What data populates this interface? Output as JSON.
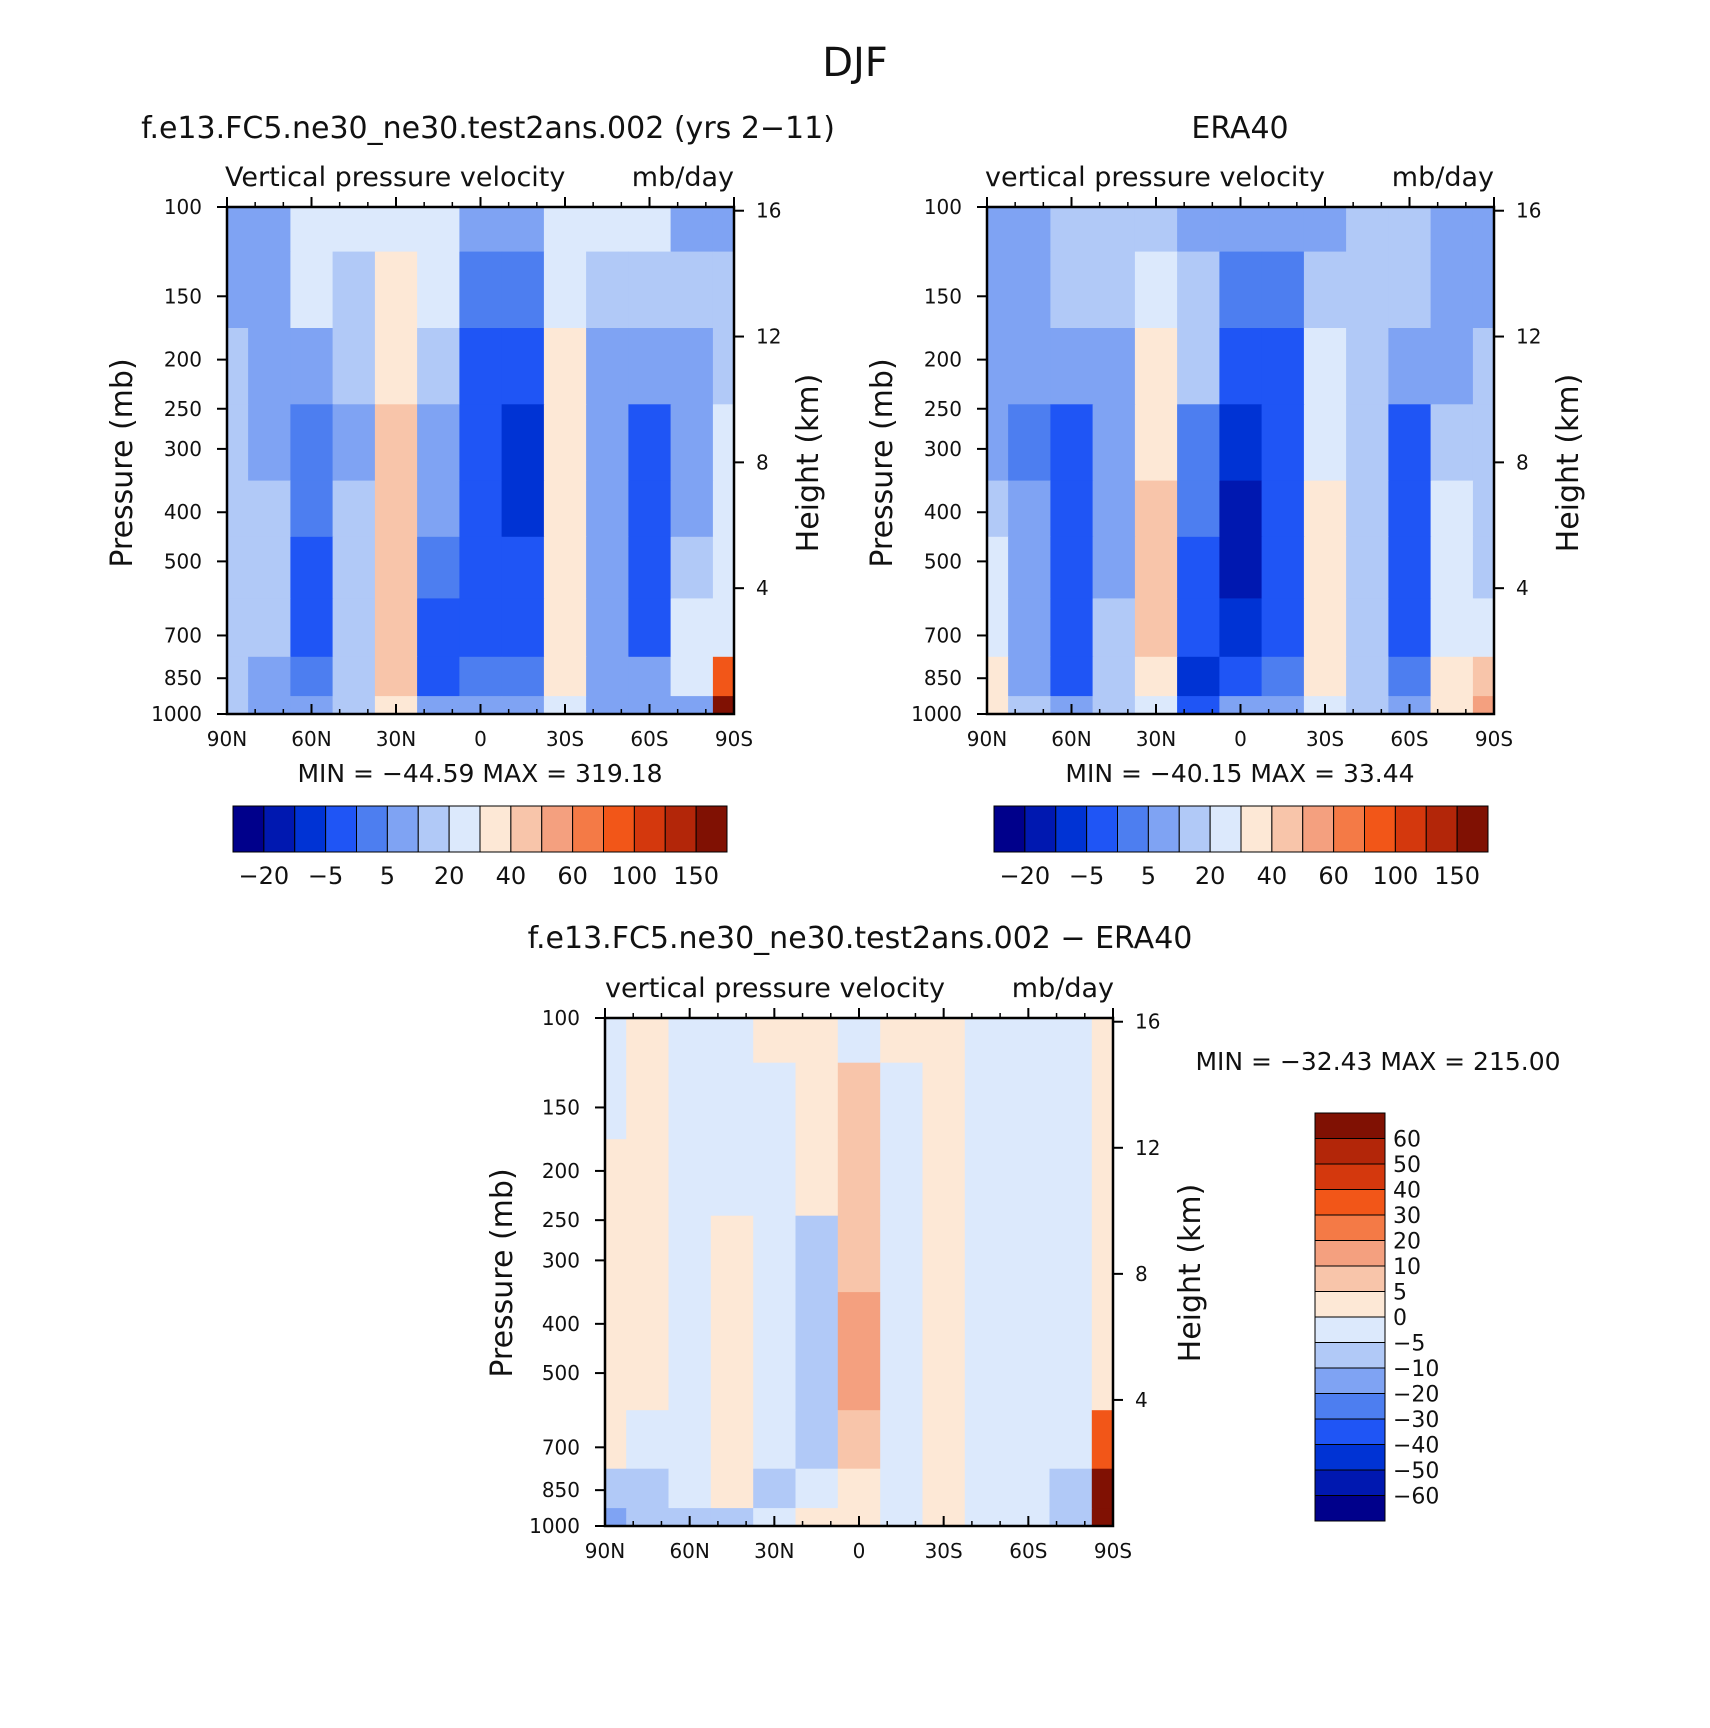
{
  "figure": {
    "title": "DJF"
  },
  "colors": {
    "main_scale": [
      "#00008b",
      "#0018b0",
      "#0033d4",
      "#1f55f5",
      "#4d7ef0",
      "#7fa3f3",
      "#b1c9f7",
      "#dce9fc",
      "#fde8d6",
      "#f8c5aa",
      "#f4a07f",
      "#f47a46",
      "#f25618",
      "#d4380d",
      "#b32609",
      "#801103"
    ],
    "diff_scale": [
      "#00008b",
      "#0018b0",
      "#0033d4",
      "#1f55f5",
      "#4d7ef0",
      "#7fa3f3",
      "#b1c9f7",
      "#dce9fc",
      "#fde8d6",
      "#f8c5aa",
      "#f4a07f",
      "#f47a46",
      "#f25618",
      "#d4380d",
      "#b32609",
      "#801103"
    ]
  },
  "panels": [
    {
      "id": "model",
      "title": "f.e13.FC5.ne30_ne30.test2ans.002 (yrs 2−11)",
      "subtitle_left": "Vertical pressure velocity",
      "subtitle_right": "mb/day",
      "y_label": "Pressure (mb)",
      "y2_label": "Height (km)",
      "min_max": "MIN = −44.59   MAX = 319.18",
      "colorbar_labels": [
        "−20",
        "−5",
        "5",
        "20",
        "40",
        "60",
        "100",
        "150"
      ]
    },
    {
      "id": "era40",
      "title": "ERA40",
      "subtitle_left": "vertical pressure velocity",
      "subtitle_right": "mb/day",
      "y_label": "Pressure (mb)",
      "y2_label": "Height (km)",
      "min_max": "MIN = −40.15   MAX =   33.44",
      "colorbar_labels": [
        "−20",
        "−5",
        "5",
        "20",
        "40",
        "60",
        "100",
        "150"
      ]
    },
    {
      "id": "diff",
      "title": "f.e13.FC5.ne30_ne30.test2ans.002 − ERA40",
      "subtitle_left": "vertical pressure velocity",
      "subtitle_right": "mb/day",
      "y_label": "Pressure (mb)",
      "y2_label": "Height (km)",
      "min_max": "MIN = −32.43   MAX = 215.00",
      "colorbar_labels": [
        "60",
        "50",
        "40",
        "30",
        "20",
        "10",
        "5",
        "0",
        "−5",
        "−10",
        "−20",
        "−30",
        "−40",
        "−50",
        "−60"
      ]
    }
  ],
  "chart_data": [
    {
      "type": "heatmap",
      "title": "f.e13.FC5.ne30_ne30.test2ans.002 (yrs 2−11)",
      "xlabel": "",
      "ylabel": "Pressure (mb)",
      "y2label": "Height (km)",
      "x_ticks": [
        "90N",
        "60N",
        "30N",
        "0",
        "30S",
        "60S",
        "90S"
      ],
      "y_ticks": [
        100,
        150,
        200,
        250,
        300,
        400,
        500,
        700,
        850,
        1000
      ],
      "y2_ticks": [
        4,
        8,
        12,
        16
      ],
      "levels": [
        -30,
        -20,
        -10,
        -5,
        0,
        5,
        10,
        20,
        30,
        40,
        50,
        60,
        80,
        100,
        125,
        150
      ],
      "scale": "log-pressure",
      "x": [
        90,
        75,
        60,
        45,
        30,
        15,
        0,
        -15,
        -30,
        -45,
        -60,
        -75,
        -90
      ],
      "y": [
        100,
        150,
        200,
        300,
        400,
        500,
        700,
        850,
        1000
      ],
      "z": [
        [
          0,
          0,
          10,
          10,
          10,
          10,
          0,
          0,
          10,
          10,
          10,
          0,
          0
        ],
        [
          0,
          0,
          10,
          5,
          20,
          10,
          -5,
          -5,
          10,
          5,
          5,
          5,
          5
        ],
        [
          5,
          0,
          0,
          5,
          20,
          5,
          -10,
          -10,
          20,
          0,
          0,
          0,
          5
        ],
        [
          5,
          0,
          -5,
          0,
          30,
          0,
          -10,
          -20,
          20,
          0,
          -10,
          0,
          10
        ],
        [
          5,
          5,
          -5,
          5,
          30,
          0,
          -10,
          -20,
          20,
          0,
          -10,
          0,
          10
        ],
        [
          5,
          5,
          -10,
          5,
          30,
          -5,
          -10,
          -10,
          20,
          0,
          -10,
          5,
          10
        ],
        [
          5,
          5,
          -10,
          5,
          30,
          -10,
          -10,
          -10,
          20,
          0,
          -10,
          10,
          10
        ],
        [
          5,
          0,
          -5,
          5,
          30,
          -10,
          -5,
          -5,
          20,
          0,
          0,
          10,
          60
        ],
        [
          5,
          0,
          0,
          5,
          20,
          0,
          0,
          0,
          10,
          0,
          0,
          0,
          150
        ]
      ],
      "min": -44.59,
      "max": 319.18
    },
    {
      "type": "heatmap",
      "title": "ERA40",
      "xlabel": "",
      "ylabel": "Pressure (mb)",
      "y2label": "Height (km)",
      "x_ticks": [
        "90N",
        "60N",
        "30N",
        "0",
        "30S",
        "60S",
        "90S"
      ],
      "y_ticks": [
        100,
        150,
        200,
        250,
        300,
        400,
        500,
        700,
        850,
        1000
      ],
      "y2_ticks": [
        4,
        8,
        12,
        16
      ],
      "levels": [
        -30,
        -20,
        -10,
        -5,
        0,
        5,
        10,
        20,
        30,
        40,
        50,
        60,
        80,
        100,
        125,
        150
      ],
      "scale": "log-pressure",
      "x": [
        90,
        75,
        60,
        45,
        30,
        15,
        0,
        -15,
        -30,
        -45,
        -60,
        -75,
        -90
      ],
      "y": [
        100,
        150,
        200,
        300,
        400,
        500,
        700,
        850,
        1000
      ],
      "z": [
        [
          0,
          0,
          5,
          5,
          5,
          0,
          0,
          0,
          0,
          5,
          5,
          0,
          0
        ],
        [
          0,
          0,
          5,
          5,
          10,
          5,
          -5,
          -5,
          5,
          5,
          5,
          0,
          0
        ],
        [
          0,
          0,
          0,
          0,
          20,
          5,
          -10,
          -10,
          10,
          5,
          0,
          0,
          5
        ],
        [
          0,
          -5,
          -10,
          0,
          20,
          -5,
          -20,
          -10,
          10,
          5,
          -10,
          5,
          5
        ],
        [
          5,
          0,
          -10,
          0,
          30,
          -5,
          -30,
          -10,
          20,
          5,
          -10,
          10,
          5
        ],
        [
          10,
          0,
          -10,
          0,
          30,
          -10,
          -30,
          -10,
          20,
          5,
          -10,
          10,
          5
        ],
        [
          10,
          0,
          -10,
          5,
          30,
          -10,
          -20,
          -10,
          20,
          5,
          -10,
          10,
          10
        ],
        [
          20,
          0,
          -10,
          5,
          20,
          -20,
          -10,
          -5,
          20,
          5,
          -5,
          20,
          30
        ],
        [
          20,
          5,
          0,
          5,
          10,
          -10,
          0,
          0,
          10,
          5,
          0,
          20,
          40
        ]
      ],
      "min": -40.15,
      "max": 33.44
    },
    {
      "type": "heatmap",
      "title": "f.e13.FC5.ne30_ne30.test2ans.002 − ERA40",
      "xlabel": "",
      "ylabel": "Pressure (mb)",
      "y2label": "Height (km)",
      "x_ticks": [
        "90N",
        "60N",
        "30N",
        "0",
        "30S",
        "60S",
        "90S"
      ],
      "y_ticks": [
        100,
        150,
        200,
        250,
        300,
        400,
        500,
        700,
        850,
        1000
      ],
      "y2_ticks": [
        4,
        8,
        12,
        16
      ],
      "levels": [
        -60,
        -50,
        -40,
        -30,
        -20,
        -10,
        -5,
        0,
        5,
        10,
        20,
        30,
        40,
        50,
        60
      ],
      "scale": "log-pressure",
      "x": [
        90,
        75,
        60,
        45,
        30,
        15,
        0,
        -15,
        -30,
        -45,
        -60,
        -75,
        -90
      ],
      "y": [
        100,
        150,
        200,
        300,
        400,
        500,
        700,
        850,
        1000
      ],
      "z": [
        [
          -2,
          2,
          -2,
          -2,
          2,
          2,
          -2,
          2,
          2,
          -2,
          -2,
          -2,
          2
        ],
        [
          -2,
          2,
          -2,
          -2,
          -2,
          2,
          5,
          -2,
          2,
          -2,
          -2,
          -2,
          2
        ],
        [
          2,
          2,
          -2,
          -2,
          -2,
          2,
          6,
          -2,
          2,
          -2,
          -2,
          -2,
          2
        ],
        [
          2,
          2,
          -2,
          2,
          -2,
          -6,
          8,
          -2,
          2,
          -2,
          -2,
          -2,
          2
        ],
        [
          2,
          2,
          -2,
          2,
          -2,
          -6,
          10,
          -2,
          2,
          -2,
          -2,
          -2,
          2
        ],
        [
          2,
          2,
          -2,
          2,
          -2,
          -6,
          12,
          -2,
          2,
          -2,
          -2,
          -2,
          2
        ],
        [
          2,
          -2,
          -2,
          2,
          -2,
          -6,
          8,
          -2,
          2,
          -2,
          -2,
          -2,
          30
        ],
        [
          -8,
          -6,
          -2,
          2,
          -6,
          -2,
          3,
          -2,
          2,
          -2,
          -2,
          -8,
          60
        ],
        [
          -12,
          -10,
          -6,
          -6,
          -4,
          2,
          2,
          -2,
          2,
          -2,
          -2,
          -10,
          60
        ]
      ],
      "min": -32.43,
      "max": 215.0
    }
  ]
}
